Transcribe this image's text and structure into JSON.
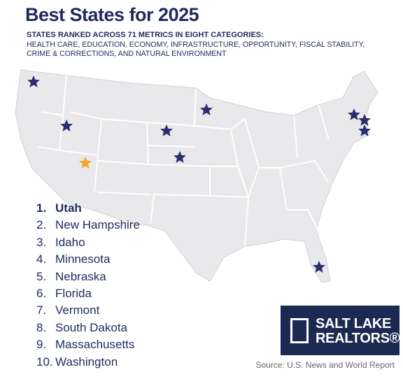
{
  "header": {
    "title": "Best States for 2025",
    "subtitle": "STATES RANKED ACROSS 71 METRICS IN EIGHT CATEGORIES:",
    "categories_text": "HEALTH CARE, EDUCATION, ECONOMY, INFRASTRUCTURE, OPPORTUNITY, FISCAL STABILITY, CRIME & CORRECTIONS, AND NATURAL ENVIRONMENT"
  },
  "rankings": [
    {
      "rank": "1.",
      "state": "Utah"
    },
    {
      "rank": "2.",
      "state": "New Hampshire"
    },
    {
      "rank": "3.",
      "state": "Idaho"
    },
    {
      "rank": "4.",
      "state": "Minnesota"
    },
    {
      "rank": "5.",
      "state": "Nebraska"
    },
    {
      "rank": "6.",
      "state": "Florida"
    },
    {
      "rank": "7.",
      "state": "Vermont"
    },
    {
      "rank": "8.",
      "state": "South Dakota"
    },
    {
      "rank": "9.",
      "state": "Massachusetts"
    },
    {
      "rank": "10.",
      "state": "Washington"
    }
  ],
  "logo": {
    "line1": "SALT LAKE",
    "line2": "REALTORS®"
  },
  "source": "Source: U.S. News and World Report"
}
